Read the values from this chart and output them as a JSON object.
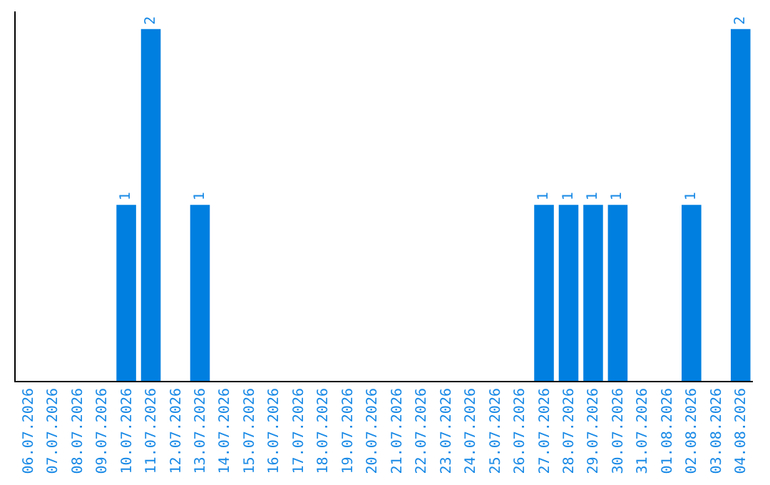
{
  "chart_data": {
    "type": "bar",
    "categories": [
      "06.07.2026",
      "07.07.2026",
      "08.07.2026",
      "09.07.2026",
      "10.07.2026",
      "11.07.2026",
      "12.07.2026",
      "13.07.2026",
      "14.07.2026",
      "15.07.2026",
      "16.07.2026",
      "17.07.2026",
      "18.07.2026",
      "19.07.2026",
      "20.07.2026",
      "21.07.2026",
      "22.07.2026",
      "23.07.2026",
      "24.07.2026",
      "25.07.2026",
      "26.07.2026",
      "27.07.2026",
      "28.07.2026",
      "29.07.2026",
      "30.07.2026",
      "31.07.2026",
      "01.08.2026",
      "02.08.2026",
      "03.08.2026",
      "04.08.2026"
    ],
    "values": [
      0,
      0,
      0,
      0,
      1,
      2,
      0,
      1,
      0,
      0,
      0,
      0,
      0,
      0,
      0,
      0,
      0,
      0,
      0,
      0,
      0,
      1,
      1,
      1,
      1,
      0,
      0,
      1,
      0,
      2
    ],
    "value_labels": [
      null,
      null,
      null,
      null,
      "1",
      "2",
      null,
      "1",
      null,
      null,
      null,
      null,
      null,
      null,
      null,
      null,
      null,
      null,
      null,
      null,
      null,
      "1",
      "1",
      "1",
      "1",
      null,
      null,
      "1",
      null,
      "2"
    ],
    "color": "#007fe0",
    "ylim": [
      0,
      2.1
    ],
    "tick_labels": "x",
    "legend": false
  }
}
